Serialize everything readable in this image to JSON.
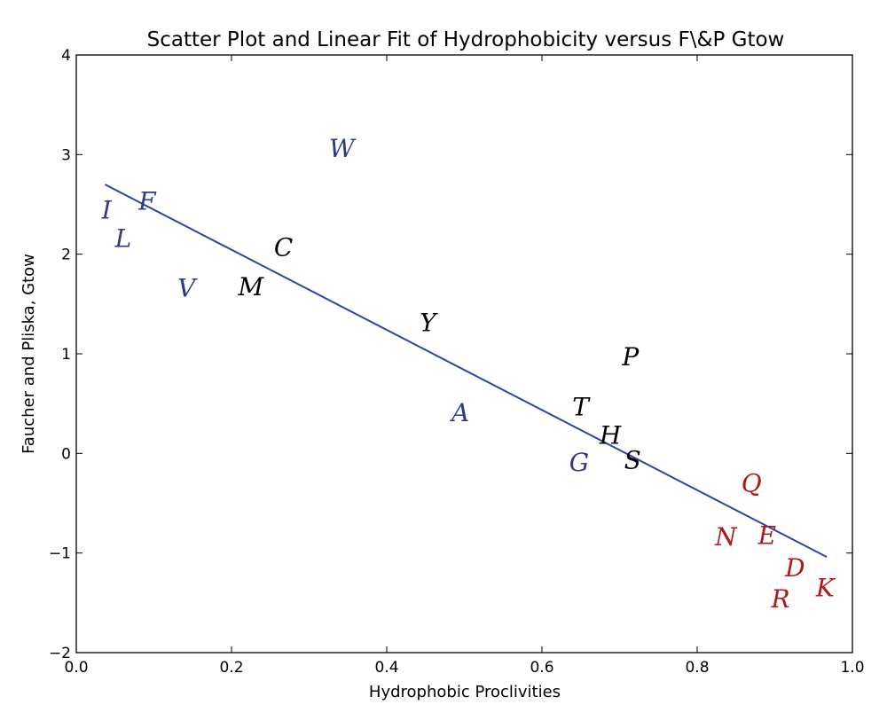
{
  "chart_data": {
    "type": "scatter",
    "title": "Scatter Plot and Linear Fit of Hydrophobicity versus F\\&P Gtow",
    "xlabel": "Hydrophobic Proclivities",
    "ylabel": "Faucher and Pliska, Gtow",
    "xlim": [
      0.0,
      1.0
    ],
    "ylim": [
      -2,
      4
    ],
    "xticks": [
      0.0,
      0.2,
      0.4,
      0.6,
      0.8,
      1.0
    ],
    "xtick_labels": [
      "0.0",
      "0.2",
      "0.4",
      "0.6",
      "0.8",
      "1.0"
    ],
    "yticks": [
      -2,
      -1,
      0,
      1,
      2,
      3,
      4
    ],
    "ytick_labels": [
      "−2",
      "−1",
      "0",
      "1",
      "2",
      "3",
      "4"
    ],
    "grid": false,
    "colors": {
      "hydrophobic": "#2e3a87",
      "neutral": "#000000",
      "charged": "#b01818",
      "fit": "#2a46a8"
    },
    "points": [
      {
        "label": "I",
        "x": 0.039,
        "y": 2.44,
        "group": "hydrophobic"
      },
      {
        "label": "L",
        "x": 0.065,
        "y": 2.3,
        "group": "hydrophobic"
      },
      {
        "label": "F",
        "x": 0.073,
        "y": 2.39,
        "group": "hydrophobic"
      },
      {
        "label": "W",
        "x": 0.342,
        "y": 3.06,
        "group": "hydrophobic"
      },
      {
        "label": "C",
        "x": 0.267,
        "y": 2.07,
        "group": "neutral"
      },
      {
        "label": "V",
        "x": 0.142,
        "y": 1.66,
        "group": "hydrophobic"
      },
      {
        "label": "M",
        "x": 0.225,
        "y": 1.67,
        "group": "neutral"
      },
      {
        "label": "Y",
        "x": 0.453,
        "y": 1.31,
        "group": "neutral"
      },
      {
        "label": "P",
        "x": 0.714,
        "y": 0.97,
        "group": "neutral"
      },
      {
        "label": "A",
        "x": 0.495,
        "y": 0.41,
        "group": "hydrophobic"
      },
      {
        "label": "T",
        "x": 0.659,
        "y": 0.34,
        "group": "neutral"
      },
      {
        "label": "H",
        "x": 0.679,
        "y": 0.18,
        "group": "neutral"
      },
      {
        "label": "G",
        "x": 0.657,
        "y": -0.02,
        "group": "hydrophobic"
      },
      {
        "label": "S",
        "x": 0.71,
        "y": -0.05,
        "group": "neutral"
      },
      {
        "label": "Q",
        "x": 0.87,
        "y": -0.3,
        "group": "charged"
      },
      {
        "label": "N",
        "x": 0.837,
        "y": -0.84,
        "group": "charged"
      },
      {
        "label": "E",
        "x": 0.897,
        "y": -0.88,
        "group": "charged"
      },
      {
        "label": "D",
        "x": 0.917,
        "y": -1.06,
        "group": "charged"
      },
      {
        "label": "R",
        "x": 0.912,
        "y": -1.39,
        "group": "charged"
      },
      {
        "label": "K",
        "x": 0.965,
        "y": -1.35,
        "group": "charged"
      }
    ],
    "fit_line": {
      "x": [
        0.037,
        0.967
      ],
      "y": [
        2.7,
        -1.04
      ]
    }
  }
}
